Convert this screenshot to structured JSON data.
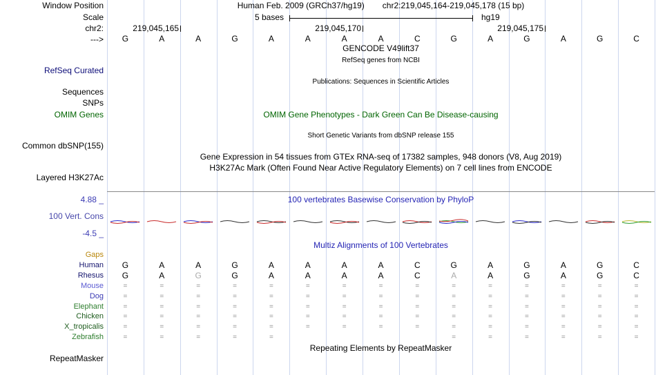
{
  "colors": {
    "grid": "#ccd6ee",
    "rule": "#888888",
    "header_blue": "#2424b4",
    "dark_green": "#006400",
    "refseq_blue": "#0c0c78",
    "axis_blue": "#3c3cb4",
    "cons_label_blue": "#4646aa"
  },
  "ruler": {
    "window_position_label": "Window Position",
    "assembly": "Human Feb. 2009 (GRCh37/hg19)",
    "position": "chr2:219,045,164-219,045,178 (15 bp)",
    "scale_label": "Scale",
    "scale_value": "5 bases",
    "genome": "hg19",
    "chrom_label": "chr2:",
    "tick_labels": [
      "219,045,165",
      "219,045,170",
      "219,045,175"
    ],
    "strand": "--->"
  },
  "sequence": [
    "G",
    "A",
    "A",
    "G",
    "A",
    "A",
    "A",
    "A",
    "C",
    "G",
    "A",
    "G",
    "A",
    "G",
    "C"
  ],
  "tracks": {
    "gencode": {
      "title": "GENCODE V49lift37",
      "subtitle": "RefSeq genes from NCBI",
      "left_label": "RefSeq Curated"
    },
    "publications": {
      "title": "Publications: Sequences in Scientific Articles"
    },
    "sequences_label": "Sequences",
    "snps_label": "SNPs",
    "omim": {
      "left_label": "OMIM Genes",
      "title": "OMIM Gene Phenotypes - Dark Green Can Be Disease-causing"
    },
    "dbsnp": {
      "title": "Short Genetic Variants from dbSNP release 155",
      "left_label": "Common dbSNP(155)"
    },
    "gtex": {
      "title": "Gene Expression in 54 tissues from GTEx RNA-seq of 17382 samples, 948 donors (V8, Aug 2019)"
    },
    "h3k27ac": {
      "title": "H3K27Ac Mark (Often Found Near Active Regulatory Elements) on 7 cell lines from ENCODE",
      "left_label": "Layered H3K27Ac"
    },
    "phylop": {
      "max": "4.88 _",
      "title": "100 vertebrates Basewise Conservation by PhyloP",
      "left_label": "100 Vert. Cons",
      "min": "-4.5 _"
    },
    "multiz": {
      "title": "Multiz Alignments of 100 Vertebrates"
    },
    "repeatmasker": {
      "title": "Repeating Elements by RepeatMasker",
      "left_label": "RepeatMasker"
    }
  },
  "wiggle": {
    "columns": [
      [
        "#2929c8",
        "#c82929"
      ],
      [
        "#c82929"
      ],
      [
        "#2929c8",
        "#c82929"
      ],
      [
        "#303030"
      ],
      [
        "#303030",
        "#c82929"
      ],
      [
        "#303030"
      ],
      [
        "#303030",
        "#c82929"
      ],
      [
        "#303030"
      ],
      [
        "#c82929",
        "#303030"
      ],
      [
        "#2f9e2f",
        "#2929c8",
        "#c82929"
      ],
      [
        "#303030"
      ],
      [
        "#2929c8",
        "#303030"
      ],
      [
        "#303030"
      ],
      [
        "#c82929",
        "#303030"
      ],
      [
        "#b8b832",
        "#2f9e2f"
      ]
    ]
  },
  "alignment": {
    "species": [
      {
        "name": "Gaps",
        "color": "#b8860b",
        "muted": [],
        "cells": [
          "",
          "",
          "",
          "",
          "",
          "",
          "",
          "",
          "",
          "",
          "",
          "",
          "",
          "",
          ""
        ]
      },
      {
        "name": "Human",
        "color": "#14146e",
        "muted": [],
        "cells": [
          "G",
          "A",
          "A",
          "G",
          "A",
          "A",
          "A",
          "A",
          "C",
          "G",
          "A",
          "G",
          "A",
          "G",
          "C"
        ]
      },
      {
        "name": "Rhesus",
        "color": "#14146e",
        "muted": [
          2,
          9
        ],
        "cells": [
          "G",
          "A",
          "G",
          "G",
          "A",
          "A",
          "A",
          "A",
          "C",
          "A",
          "A",
          "G",
          "A",
          "G",
          "C"
        ]
      },
      {
        "name": "Mouse",
        "color": "#5a5ad2",
        "muted": [],
        "cells": [
          "=",
          "=",
          "=",
          "=",
          "=",
          "=",
          "=",
          "=",
          "=",
          "=",
          "=",
          "=",
          "=",
          "=",
          "="
        ]
      },
      {
        "name": "Dog",
        "color": "#3c3cb4",
        "muted": [],
        "cells": [
          "=",
          "=",
          "=",
          "=",
          "=",
          "=",
          "=",
          "=",
          "=",
          "=",
          "=",
          "=",
          "=",
          "=",
          "="
        ]
      },
      {
        "name": "Elephant",
        "color": "#2d7d2d",
        "muted": [],
        "cells": [
          "=",
          "=",
          "=",
          "=",
          "=",
          "=",
          "=",
          "=",
          "=",
          "=",
          "=",
          "=",
          "=",
          "=",
          "="
        ]
      },
      {
        "name": "Chicken",
        "color": "#1e5c1e",
        "muted": [],
        "cells": [
          "=",
          "=",
          "=",
          "=",
          "=",
          "=",
          "=",
          "=",
          "=",
          "=",
          "=",
          "=",
          "=",
          "=",
          "="
        ]
      },
      {
        "name": "X_tropicalis",
        "color": "#1e5c1e",
        "muted": [],
        "cells": [
          "=",
          "=",
          "=",
          "=",
          "=",
          "=",
          "=",
          "=",
          "=",
          "=",
          "=",
          "=",
          "=",
          "=",
          "="
        ]
      },
      {
        "name": "Zebrafish",
        "color": "#2d7d2d",
        "muted": [],
        "cells": [
          "=",
          "=",
          "=",
          "=",
          "=",
          "",
          "",
          "",
          "",
          "=",
          "=",
          "=",
          "=",
          "=",
          "="
        ]
      }
    ]
  }
}
